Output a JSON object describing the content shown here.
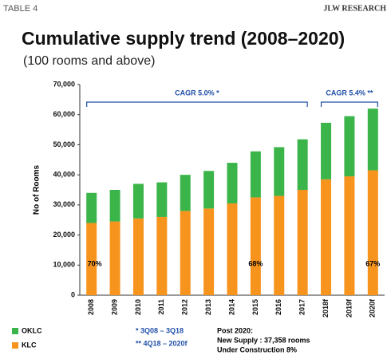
{
  "header": {
    "left": "TABLE 4",
    "right": "JLW RESEARCH"
  },
  "chart_data": {
    "type": "stacked-bar",
    "title": "Cumulative supply trend (2008–2020)",
    "subtitle": "(100 rooms and above)",
    "y_label": "No of Rooms",
    "categories": [
      "2008",
      "2009",
      "2010",
      "2011",
      "2012",
      "2013",
      "2014",
      "2015",
      "2016",
      "2017",
      "2018f",
      "2019f",
      "2020f"
    ],
    "series": [
      {
        "name": "KLC",
        "color": "#f7941d",
        "values": [
          24000,
          24500,
          25500,
          26000,
          28000,
          28800,
          30500,
          32500,
          33000,
          35000,
          38500,
          39500,
          41500
        ]
      },
      {
        "name": "OKLC",
        "color": "#3bb54a",
        "values": [
          10000,
          10500,
          11500,
          11500,
          12000,
          12500,
          13500,
          15300,
          16200,
          16800,
          18800,
          20000,
          20500
        ]
      }
    ],
    "ylim": [
      0,
      70000
    ],
    "yticks": [
      0,
      {
        "value": 10000,
        "label": "10,000"
      },
      {
        "value": 20000,
        "label": "20,000"
      },
      {
        "value": 30000,
        "label": "30,000"
      },
      {
        "value": 40000,
        "label": "40,000"
      },
      {
        "value": 50000,
        "label": "50,000"
      },
      {
        "value": 60000,
        "label": "60,000"
      },
      {
        "value": 70000,
        "label": "70,000"
      }
    ],
    "bar_labels": [
      "70%",
      "68%",
      "67%"
    ],
    "brackets": [
      "CAGR 5.0% *",
      "CAGR 5.4% **"
    ],
    "footnotes": [
      "* 3Q08 – 3Q18",
      "** 4Q18 – 2020f"
    ],
    "notes": [
      "Post 2020:",
      "New Supply : 37,358 rooms",
      "Under Construction 8%"
    ]
  }
}
